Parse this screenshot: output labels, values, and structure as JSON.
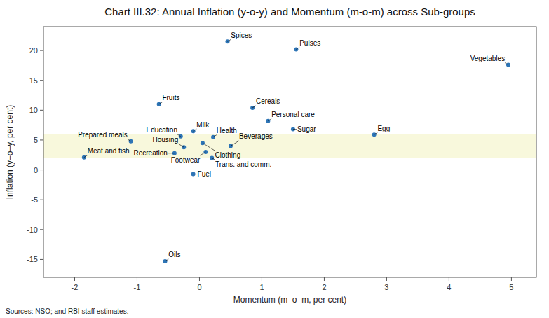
{
  "chart_data": {
    "type": "scatter",
    "title": "Chart III.32: Annual Inflation (y-o-y) and Momentum (m-o-m) across Sub-groups",
    "x_label": "Momentum (m–o–m, per cent)",
    "y_label": "Inflation (y–o–y, per cent)",
    "source": "Sources: NSO; and RBI staff estimates.",
    "xlim": [
      -2.5,
      5.4
    ],
    "ylim": [
      -18,
      24
    ],
    "xticks": [
      -2,
      -1,
      0,
      1,
      2,
      3,
      4,
      5
    ],
    "yticks": [
      -15,
      -10,
      -5,
      0,
      5,
      10,
      15,
      20
    ],
    "grid": false,
    "color": "#2e75b6",
    "band": {
      "ymin": 2,
      "ymax": 6,
      "color": "#f8f8dc"
    },
    "labels": [
      "Spices",
      "Pulses",
      "Vegetables",
      "Fruits",
      "Cereals",
      "Personal care",
      "Sugar",
      "Milk",
      "Health",
      "Education",
      "Egg",
      "Clothing",
      "Prepared meals",
      "Beverages",
      "Housing",
      "Footwear",
      "Recreation",
      "Trans. and comm.",
      "Meat and fish",
      "Fuel",
      "Oils"
    ],
    "x": [
      0.45,
      1.55,
      4.95,
      -0.65,
      0.85,
      1.1,
      1.5,
      -0.1,
      0.22,
      -0.3,
      2.8,
      0.05,
      -1.1,
      0.5,
      -0.25,
      0.1,
      -0.4,
      0.2,
      -1.85,
      -0.1,
      -0.55
    ],
    "values": [
      21.5,
      20.2,
      17.6,
      11.0,
      10.4,
      8.2,
      6.8,
      6.5,
      5.5,
      5.6,
      5.9,
      4.5,
      4.8,
      4.0,
      3.8,
      3.0,
      2.8,
      2.0,
      2.1,
      -0.7,
      -15.3
    ]
  }
}
